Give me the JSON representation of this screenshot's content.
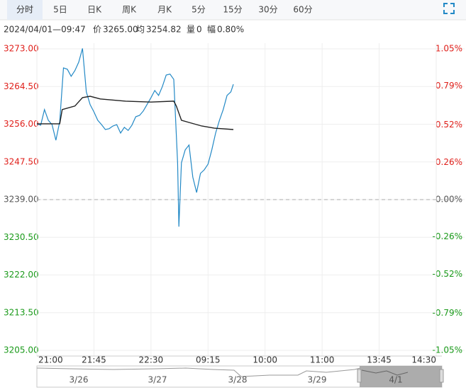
{
  "tabs": [
    "分时",
    "5日",
    "日K",
    "周K",
    "月K",
    "5分",
    "15分",
    "30分",
    "60分"
  ],
  "info": {
    "time": "2024/04/01—09:47",
    "price_label": "价",
    "price": "3265.00",
    "avg_label": "均",
    "avg": "3254.82",
    "volume_label": "量",
    "volume": "0",
    "change_label": "幅",
    "change": "0.80%"
  },
  "chart_data": {
    "type": "line",
    "xlim": [
      0,
      315
    ],
    "xticks": [
      {
        "value": 0,
        "label": "21:00"
      },
      {
        "value": 45,
        "label": "21:45"
      },
      {
        "value": 90,
        "label": "22:30"
      },
      {
        "value": 135,
        "label": "09:15"
      },
      {
        "value": 180,
        "label": "10:00"
      },
      {
        "value": 225,
        "label": "11:00"
      },
      {
        "value": 270,
        "label": "13:45"
      },
      {
        "value": 315,
        "label": "14:30"
      }
    ],
    "ylim": [
      3205,
      3273
    ],
    "yticks": [
      {
        "value": 3205,
        "label": "3205.00"
      },
      {
        "value": 3213.5,
        "label": "3213.50"
      },
      {
        "value": 3222,
        "label": "3222.00"
      },
      {
        "value": 3230.5,
        "label": "3230.50"
      },
      {
        "value": 3239,
        "label": "3239.00"
      },
      {
        "value": 3247.5,
        "label": "3247.50"
      },
      {
        "value": 3256,
        "label": "3256.00"
      },
      {
        "value": 3264.5,
        "label": "3264.50"
      },
      {
        "value": 3273,
        "label": "3273.00"
      }
    ],
    "y2lim": [
      -1.05,
      1.05
    ],
    "y2ticks": [
      {
        "value": -1.05,
        "label": "-1.05%"
      },
      {
        "value": -0.79,
        "label": "-0.79%"
      },
      {
        "value": -0.52,
        "label": "-0.52%"
      },
      {
        "value": -0.26,
        "label": "-0.26%"
      },
      {
        "value": 0,
        "label": "0.00%"
      },
      {
        "value": 0.26,
        "label": "0.26%"
      },
      {
        "value": 0.52,
        "label": "0.52%"
      },
      {
        "value": 0.79,
        "label": "0.79%"
      },
      {
        "value": 1.05,
        "label": "1.05%"
      }
    ],
    "baseline": 3239,
    "grid": true,
    "up_color": "#e0201b",
    "down_color": "#1a9a1a",
    "flat_color": "#555555",
    "price": {
      "color": "#2389c6",
      "x": [
        0,
        3,
        6,
        9,
        12,
        15,
        18,
        21,
        24,
        27,
        30,
        33,
        36,
        39,
        42,
        45,
        48,
        51,
        54,
        57,
        60,
        63,
        66,
        69,
        72,
        75,
        78,
        81,
        84,
        87,
        90,
        93,
        96,
        99,
        102,
        105,
        108,
        111,
        112,
        114,
        117,
        120,
        123,
        126,
        129,
        132,
        135,
        138,
        141,
        144,
        147,
        150,
        153,
        155
      ],
      "values": [
        3256.1,
        3255.8,
        3259.3,
        3256.9,
        3255.9,
        3252.4,
        3256.6,
        3268.7,
        3268.4,
        3266.8,
        3268.1,
        3270.0,
        3273.1,
        3263.3,
        3260.4,
        3258.8,
        3256.9,
        3255.9,
        3254.8,
        3255.0,
        3255.6,
        3255.9,
        3254.0,
        3255.3,
        3254.6,
        3255.8,
        3257.7,
        3258.0,
        3259.0,
        3260.5,
        3262.0,
        3263.6,
        3262.5,
        3264.5,
        3267.1,
        3267.3,
        3266.1,
        3247.3,
        3232.9,
        3247.3,
        3250.2,
        3251.3,
        3244.1,
        3240.6,
        3244.9,
        3245.7,
        3247.0,
        3250.2,
        3254.0,
        3256.9,
        3259.3,
        3262.5,
        3263.3,
        3265.0
      ]
    },
    "average": {
      "color": "#222222",
      "x": [
        0,
        18,
        20,
        30,
        36,
        42,
        50,
        70,
        90,
        108,
        110,
        114,
        120,
        130,
        140,
        155
      ],
      "values": [
        3256.1,
        3256.1,
        3259.3,
        3260.1,
        3262.0,
        3262.3,
        3261.7,
        3261.2,
        3261.0,
        3261.2,
        3260.1,
        3256.9,
        3256.4,
        3255.6,
        3255.1,
        3254.8
      ]
    }
  },
  "navigator": {
    "dates": [
      "3/26",
      "3/27",
      "3/28",
      "3/29",
      "4/1"
    ]
  }
}
